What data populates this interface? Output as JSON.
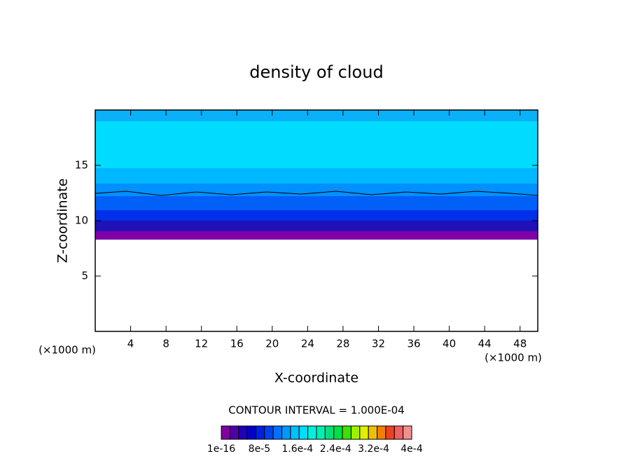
{
  "chart_data": {
    "type": "contour",
    "title": "density of cloud",
    "x_label": "X-coordinate",
    "y_label": "Z-coordinate",
    "x_unit": "(×1000 m)",
    "y_unit": "(×1000 m)",
    "xlim": [
      0,
      50
    ],
    "ylim": [
      0,
      20
    ],
    "xticks": [
      4,
      8,
      12,
      16,
      20,
      24,
      28,
      32,
      36,
      40,
      44,
      48
    ],
    "yticks": [
      5,
      10,
      15
    ],
    "contour_interval": "CONTOUR INTERVAL = 1.000E-04",
    "colorbar": {
      "clim": [
        0,
        0.0004
      ],
      "ticks": [
        {
          "value": 1e-16,
          "label": "1e-16"
        },
        {
          "value": 8e-05,
          "label": "8e-5"
        },
        {
          "value": 0.00016,
          "label": "1.6e-4"
        },
        {
          "value": 0.00024,
          "label": "2.4e-4"
        },
        {
          "value": 0.00032,
          "label": "3.2e-4"
        },
        {
          "value": 0.0004,
          "label": "4e-4"
        }
      ],
      "colors": [
        "#8000a0",
        "#5000a8",
        "#2000b8",
        "#0000c8",
        "#0020e0",
        "#0040f0",
        "#0070ff",
        "#0098ff",
        "#00c0ff",
        "#00dcff",
        "#00f0e0",
        "#00f0b0",
        "#00e080",
        "#00e040",
        "#40e000",
        "#a0f000",
        "#e0f000",
        "#f0c000",
        "#f08000",
        "#f04020",
        "#f06060",
        "#f09090"
      ]
    }
  }
}
